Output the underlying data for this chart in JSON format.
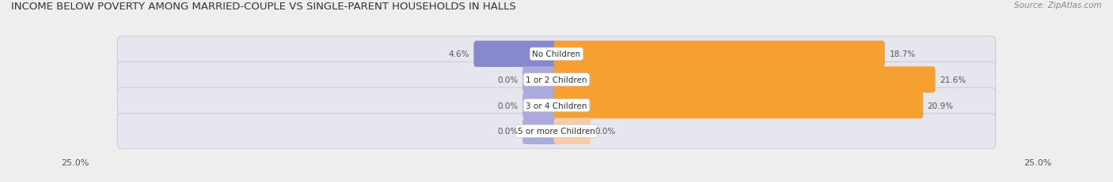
{
  "title": "INCOME BELOW POVERTY AMONG MARRIED-COUPLE VS SINGLE-PARENT HOUSEHOLDS IN HALLS",
  "source": "Source: ZipAtlas.com",
  "categories": [
    "No Children",
    "1 or 2 Children",
    "3 or 4 Children",
    "5 or more Children"
  ],
  "married_values": [
    4.6,
    0.0,
    0.0,
    0.0
  ],
  "single_values": [
    18.7,
    21.6,
    20.9,
    0.0
  ],
  "max_val": 25.0,
  "married_color": "#8888cc",
  "married_color_0": "#aaaadd",
  "single_color": "#f5a030",
  "single_color_0": "#f8ccaa",
  "bg_color": "#eeeeee",
  "row_bg_color": "#e6e6ee",
  "row_border_color": "#ccccdd",
  "title_fontsize": 9.5,
  "source_fontsize": 7.5,
  "label_fontsize": 7.5,
  "value_fontsize": 7.5,
  "axis_label_fontsize": 8,
  "legend_fontsize": 8
}
